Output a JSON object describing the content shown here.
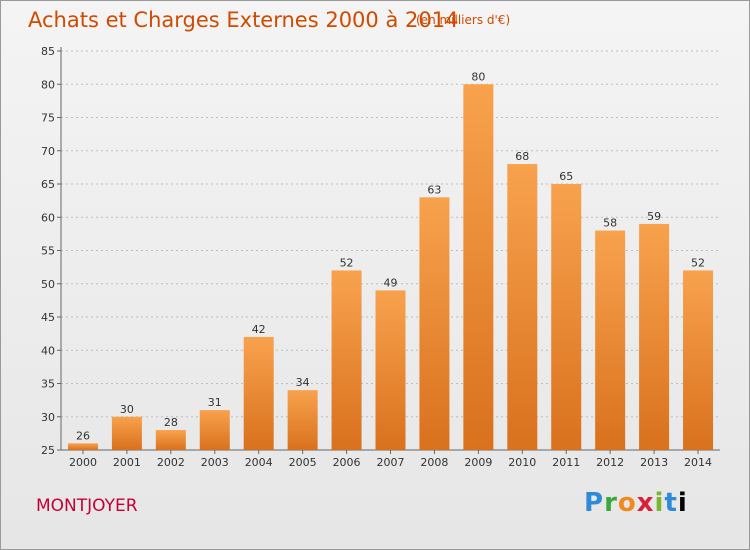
{
  "title": "Achats et Charges Externes 2000 à 2014",
  "subtitle": "(en milliers d'€)",
  "location": "MONTJOYER",
  "logo": {
    "letters": [
      "P",
      "r",
      "o",
      "x",
      "i",
      "t",
      "i"
    ]
  },
  "colors": {
    "bar_top": "#f8a24e",
    "bar_bottom": "#d9711d",
    "title": "#d04b00",
    "location": "#c4003a"
  },
  "chart_data": {
    "type": "bar",
    "title": "Achats et Charges Externes 2000 à 2014",
    "subtitle": "(en milliers d'€)",
    "xlabel": "",
    "ylabel": "",
    "categories": [
      "2000",
      "2001",
      "2002",
      "2003",
      "2004",
      "2005",
      "2006",
      "2007",
      "2008",
      "2009",
      "2010",
      "2011",
      "2012",
      "2013",
      "2014"
    ],
    "values": [
      26,
      30,
      28,
      31,
      42,
      34,
      52,
      49,
      63,
      80,
      68,
      65,
      58,
      59,
      52
    ],
    "ylim": [
      25,
      85
    ],
    "yticks": [
      25,
      30,
      35,
      40,
      45,
      50,
      55,
      60,
      65,
      70,
      75,
      80,
      85
    ],
    "grid": "horizontal-dotted"
  }
}
